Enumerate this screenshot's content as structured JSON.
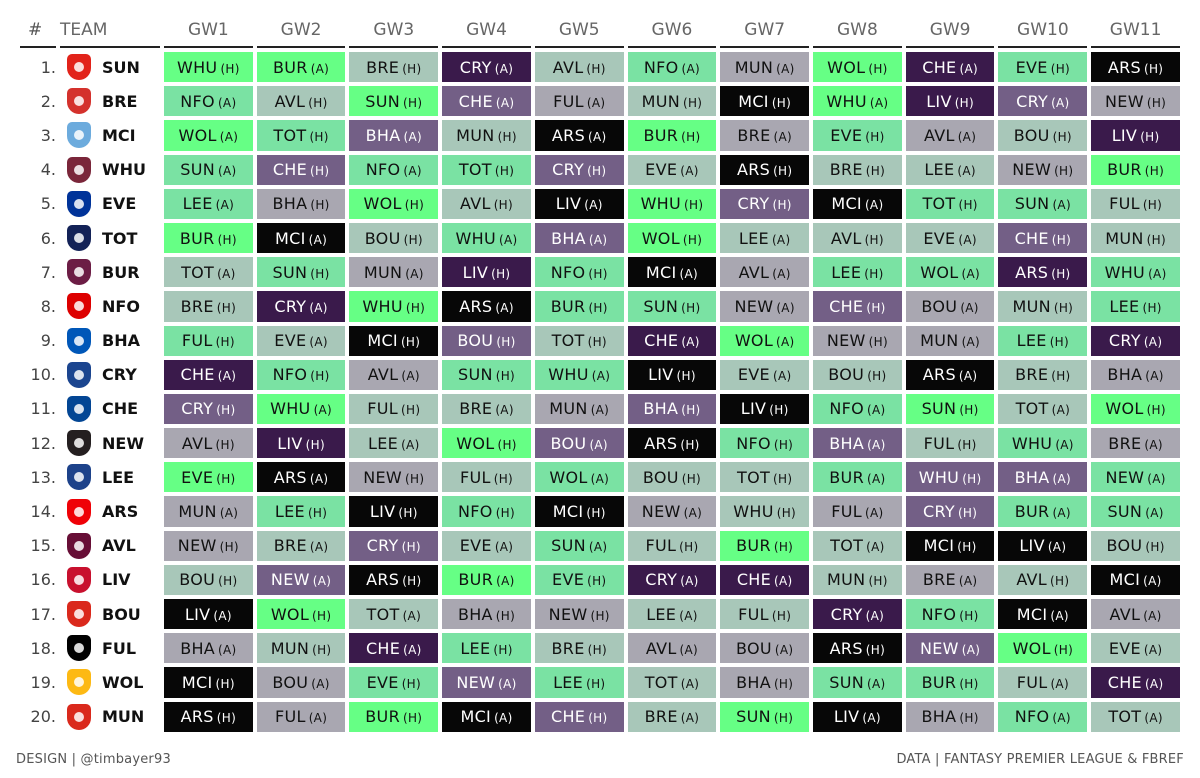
{
  "headers": {
    "num": "#",
    "team": "TEAM",
    "gameweeks": [
      "GW1",
      "GW2",
      "GW3",
      "GW4",
      "GW5",
      "GW6",
      "GW7",
      "GW8",
      "GW9",
      "GW10",
      "GW11"
    ]
  },
  "difficulty_colors": {
    "1": "#66ff85",
    "2": "#7ae2a3",
    "3": "#a8c7b9",
    "4": "#a9a7b1",
    "5": "#735f86",
    "6": "#3a1a4b",
    "7": "#070707"
  },
  "teams": [
    {
      "rank": "1.",
      "abbr": "SUN",
      "logo_color": "#e2231a",
      "logo_icon": "sunderland-crest-icon",
      "fixtures": [
        [
          "WHU",
          "(H)",
          1
        ],
        [
          "BUR",
          "(A)",
          1
        ],
        [
          "BRE",
          "(H)",
          3
        ],
        [
          "CRY",
          "(A)",
          6
        ],
        [
          "AVL",
          "(H)",
          3
        ],
        [
          "NFO",
          "(A)",
          2
        ],
        [
          "MUN",
          "(A)",
          4
        ],
        [
          "WOL",
          "(H)",
          1
        ],
        [
          "CHE",
          "(A)",
          6
        ],
        [
          "EVE",
          "(H)",
          2
        ],
        [
          "ARS",
          "(H)",
          7
        ]
      ]
    },
    {
      "rank": "2.",
      "abbr": "BRE",
      "logo_color": "#d4312c",
      "logo_icon": "brentford-crest-icon",
      "fixtures": [
        [
          "NFO",
          "(A)",
          2
        ],
        [
          "AVL",
          "(H)",
          3
        ],
        [
          "SUN",
          "(H)",
          1
        ],
        [
          "CHE",
          "(A)",
          5
        ],
        [
          "FUL",
          "(A)",
          4
        ],
        [
          "MUN",
          "(H)",
          3
        ],
        [
          "MCI",
          "(H)",
          7
        ],
        [
          "WHU",
          "(A)",
          1
        ],
        [
          "LIV",
          "(H)",
          6
        ],
        [
          "CRY",
          "(A)",
          5
        ],
        [
          "NEW",
          "(H)",
          4
        ]
      ]
    },
    {
      "rank": "3.",
      "abbr": "MCI",
      "logo_color": "#6cabdd",
      "logo_icon": "man-city-crest-icon",
      "fixtures": [
        [
          "WOL",
          "(A)",
          1
        ],
        [
          "TOT",
          "(H)",
          2
        ],
        [
          "BHA",
          "(A)",
          5
        ],
        [
          "MUN",
          "(H)",
          3
        ],
        [
          "ARS",
          "(A)",
          7
        ],
        [
          "BUR",
          "(H)",
          1
        ],
        [
          "BRE",
          "(A)",
          4
        ],
        [
          "EVE",
          "(H)",
          2
        ],
        [
          "AVL",
          "(A)",
          4
        ],
        [
          "BOU",
          "(H)",
          3
        ],
        [
          "LIV",
          "(H)",
          6
        ]
      ]
    },
    {
      "rank": "4.",
      "abbr": "WHU",
      "logo_color": "#7a263a",
      "logo_icon": "west-ham-crest-icon",
      "fixtures": [
        [
          "SUN",
          "(A)",
          2
        ],
        [
          "CHE",
          "(H)",
          5
        ],
        [
          "NFO",
          "(A)",
          2
        ],
        [
          "TOT",
          "(H)",
          2
        ],
        [
          "CRY",
          "(H)",
          5
        ],
        [
          "EVE",
          "(A)",
          3
        ],
        [
          "ARS",
          "(H)",
          7
        ],
        [
          "BRE",
          "(H)",
          3
        ],
        [
          "LEE",
          "(A)",
          3
        ],
        [
          "NEW",
          "(H)",
          4
        ],
        [
          "BUR",
          "(H)",
          1
        ]
      ]
    },
    {
      "rank": "5.",
      "abbr": "EVE",
      "logo_color": "#003399",
      "logo_icon": "everton-crest-icon",
      "fixtures": [
        [
          "LEE",
          "(A)",
          2
        ],
        [
          "BHA",
          "(H)",
          4
        ],
        [
          "WOL",
          "(H)",
          1
        ],
        [
          "AVL",
          "(H)",
          3
        ],
        [
          "LIV",
          "(A)",
          7
        ],
        [
          "WHU",
          "(H)",
          1
        ],
        [
          "CRY",
          "(H)",
          5
        ],
        [
          "MCI",
          "(A)",
          7
        ],
        [
          "TOT",
          "(H)",
          2
        ],
        [
          "SUN",
          "(A)",
          2
        ],
        [
          "FUL",
          "(H)",
          3
        ]
      ]
    },
    {
      "rank": "6.",
      "abbr": "TOT",
      "logo_color": "#132257",
      "logo_icon": "tottenham-crest-icon",
      "fixtures": [
        [
          "BUR",
          "(H)",
          1
        ],
        [
          "MCI",
          "(A)",
          7
        ],
        [
          "BOU",
          "(H)",
          3
        ],
        [
          "WHU",
          "(A)",
          2
        ],
        [
          "BHA",
          "(A)",
          5
        ],
        [
          "WOL",
          "(H)",
          1
        ],
        [
          "LEE",
          "(A)",
          3
        ],
        [
          "AVL",
          "(H)",
          3
        ],
        [
          "EVE",
          "(A)",
          3
        ],
        [
          "CHE",
          "(H)",
          5
        ],
        [
          "MUN",
          "(H)",
          3
        ]
      ]
    },
    {
      "rank": "7.",
      "abbr": "BUR",
      "logo_color": "#6c1d45",
      "logo_icon": "burnley-crest-icon",
      "fixtures": [
        [
          "TOT",
          "(A)",
          3
        ],
        [
          "SUN",
          "(H)",
          2
        ],
        [
          "MUN",
          "(A)",
          4
        ],
        [
          "LIV",
          "(H)",
          6
        ],
        [
          "NFO",
          "(H)",
          2
        ],
        [
          "MCI",
          "(A)",
          7
        ],
        [
          "AVL",
          "(A)",
          4
        ],
        [
          "LEE",
          "(H)",
          2
        ],
        [
          "WOL",
          "(A)",
          2
        ],
        [
          "ARS",
          "(H)",
          6
        ],
        [
          "WHU",
          "(A)",
          2
        ]
      ]
    },
    {
      "rank": "8.",
      "abbr": "NFO",
      "logo_color": "#dd0000",
      "logo_icon": "forest-crest-icon",
      "fixtures": [
        [
          "BRE",
          "(H)",
          3
        ],
        [
          "CRY",
          "(A)",
          6
        ],
        [
          "WHU",
          "(H)",
          1
        ],
        [
          "ARS",
          "(A)",
          7
        ],
        [
          "BUR",
          "(H)",
          2
        ],
        [
          "SUN",
          "(H)",
          2
        ],
        [
          "NEW",
          "(A)",
          4
        ],
        [
          "CHE",
          "(H)",
          5
        ],
        [
          "BOU",
          "(A)",
          4
        ],
        [
          "MUN",
          "(H)",
          3
        ],
        [
          "LEE",
          "(H)",
          2
        ]
      ]
    },
    {
      "rank": "9.",
      "abbr": "BHA",
      "logo_color": "#0057b8",
      "logo_icon": "brighton-crest-icon",
      "fixtures": [
        [
          "FUL",
          "(H)",
          2
        ],
        [
          "EVE",
          "(A)",
          3
        ],
        [
          "MCI",
          "(H)",
          7
        ],
        [
          "BOU",
          "(H)",
          5
        ],
        [
          "TOT",
          "(H)",
          3
        ],
        [
          "CHE",
          "(A)",
          6
        ],
        [
          "WOL",
          "(A)",
          1
        ],
        [
          "NEW",
          "(H)",
          4
        ],
        [
          "MUN",
          "(A)",
          4
        ],
        [
          "LEE",
          "(H)",
          2
        ],
        [
          "CRY",
          "(A)",
          6
        ]
      ]
    },
    {
      "rank": "10.",
      "abbr": "CRY",
      "logo_color": "#1b458f",
      "logo_icon": "palace-crest-icon",
      "fixtures": [
        [
          "CHE",
          "(A)",
          6
        ],
        [
          "NFO",
          "(H)",
          2
        ],
        [
          "AVL",
          "(A)",
          4
        ],
        [
          "SUN",
          "(H)",
          2
        ],
        [
          "WHU",
          "(A)",
          2
        ],
        [
          "LIV",
          "(H)",
          7
        ],
        [
          "EVE",
          "(A)",
          3
        ],
        [
          "BOU",
          "(H)",
          3
        ],
        [
          "ARS",
          "(A)",
          7
        ],
        [
          "BRE",
          "(H)",
          3
        ],
        [
          "BHA",
          "(A)",
          4
        ]
      ]
    },
    {
      "rank": "11.",
      "abbr": "CHE",
      "logo_color": "#034694",
      "logo_icon": "chelsea-crest-icon",
      "fixtures": [
        [
          "CRY",
          "(H)",
          5
        ],
        [
          "WHU",
          "(A)",
          1
        ],
        [
          "FUL",
          "(H)",
          3
        ],
        [
          "BRE",
          "(A)",
          3
        ],
        [
          "MUN",
          "(A)",
          4
        ],
        [
          "BHA",
          "(H)",
          5
        ],
        [
          "LIV",
          "(H)",
          7
        ],
        [
          "NFO",
          "(A)",
          2
        ],
        [
          "SUN",
          "(H)",
          1
        ],
        [
          "TOT",
          "(A)",
          3
        ],
        [
          "WOL",
          "(H)",
          1
        ]
      ]
    },
    {
      "rank": "12.",
      "abbr": "NEW",
      "logo_color": "#241f20",
      "logo_icon": "newcastle-crest-icon",
      "fixtures": [
        [
          "AVL",
          "(H)",
          4
        ],
        [
          "LIV",
          "(H)",
          6
        ],
        [
          "LEE",
          "(A)",
          3
        ],
        [
          "WOL",
          "(H)",
          1
        ],
        [
          "BOU",
          "(A)",
          5
        ],
        [
          "ARS",
          "(H)",
          7
        ],
        [
          "NFO",
          "(H)",
          2
        ],
        [
          "BHA",
          "(A)",
          5
        ],
        [
          "FUL",
          "(H)",
          3
        ],
        [
          "WHU",
          "(A)",
          2
        ],
        [
          "BRE",
          "(A)",
          4
        ]
      ]
    },
    {
      "rank": "13.",
      "abbr": "LEE",
      "logo_color": "#1d428a",
      "logo_icon": "leeds-crest-icon",
      "fixtures": [
        [
          "EVE",
          "(H)",
          1
        ],
        [
          "ARS",
          "(A)",
          7
        ],
        [
          "NEW",
          "(H)",
          4
        ],
        [
          "FUL",
          "(H)",
          3
        ],
        [
          "WOL",
          "(A)",
          2
        ],
        [
          "BOU",
          "(H)",
          3
        ],
        [
          "TOT",
          "(H)",
          3
        ],
        [
          "BUR",
          "(A)",
          2
        ],
        [
          "WHU",
          "(H)",
          5
        ],
        [
          "BHA",
          "(A)",
          5
        ],
        [
          "NEW",
          "(A)",
          2
        ]
      ]
    },
    {
      "rank": "14.",
      "abbr": "ARS",
      "logo_color": "#ef0107",
      "logo_icon": "arsenal-crest-icon",
      "fixtures": [
        [
          "MUN",
          "(A)",
          4
        ],
        [
          "LEE",
          "(H)",
          2
        ],
        [
          "LIV",
          "(H)",
          7
        ],
        [
          "NFO",
          "(H)",
          2
        ],
        [
          "MCI",
          "(H)",
          7
        ],
        [
          "NEW",
          "(A)",
          4
        ],
        [
          "WHU",
          "(H)",
          3
        ],
        [
          "FUL",
          "(A)",
          4
        ],
        [
          "CRY",
          "(H)",
          5
        ],
        [
          "BUR",
          "(A)",
          2
        ],
        [
          "SUN",
          "(A)",
          2
        ]
      ]
    },
    {
      "rank": "15.",
      "abbr": "AVL",
      "logo_color": "#670e36",
      "logo_icon": "villa-crest-icon",
      "fixtures": [
        [
          "NEW",
          "(H)",
          4
        ],
        [
          "BRE",
          "(A)",
          3
        ],
        [
          "CRY",
          "(H)",
          5
        ],
        [
          "EVE",
          "(A)",
          3
        ],
        [
          "SUN",
          "(A)",
          2
        ],
        [
          "FUL",
          "(H)",
          3
        ],
        [
          "BUR",
          "(H)",
          1
        ],
        [
          "TOT",
          "(A)",
          3
        ],
        [
          "MCI",
          "(H)",
          7
        ],
        [
          "LIV",
          "(A)",
          7
        ],
        [
          "BOU",
          "(H)",
          3
        ]
      ]
    },
    {
      "rank": "16.",
      "abbr": "LIV",
      "logo_color": "#c8102e",
      "logo_icon": "liverpool-crest-icon",
      "fixtures": [
        [
          "BOU",
          "(H)",
          3
        ],
        [
          "NEW",
          "(A)",
          5
        ],
        [
          "ARS",
          "(H)",
          7
        ],
        [
          "BUR",
          "(A)",
          1
        ],
        [
          "EVE",
          "(H)",
          2
        ],
        [
          "CRY",
          "(A)",
          6
        ],
        [
          "CHE",
          "(A)",
          6
        ],
        [
          "MUN",
          "(H)",
          3
        ],
        [
          "BRE",
          "(A)",
          4
        ],
        [
          "AVL",
          "(H)",
          3
        ],
        [
          "MCI",
          "(A)",
          7
        ]
      ]
    },
    {
      "rank": "17.",
      "abbr": "BOU",
      "logo_color": "#da291c",
      "logo_icon": "bournemouth-crest-icon",
      "fixtures": [
        [
          "LIV",
          "(A)",
          7
        ],
        [
          "WOL",
          "(H)",
          1
        ],
        [
          "TOT",
          "(A)",
          3
        ],
        [
          "BHA",
          "(H)",
          4
        ],
        [
          "NEW",
          "(H)",
          4
        ],
        [
          "LEE",
          "(A)",
          3
        ],
        [
          "FUL",
          "(H)",
          3
        ],
        [
          "CRY",
          "(A)",
          6
        ],
        [
          "NFO",
          "(H)",
          2
        ],
        [
          "MCI",
          "(A)",
          7
        ],
        [
          "AVL",
          "(A)",
          4
        ]
      ]
    },
    {
      "rank": "18.",
      "abbr": "FUL",
      "logo_color": "#000000",
      "logo_icon": "fulham-crest-icon",
      "fixtures": [
        [
          "BHA",
          "(A)",
          4
        ],
        [
          "MUN",
          "(H)",
          3
        ],
        [
          "CHE",
          "(A)",
          6
        ],
        [
          "LEE",
          "(H)",
          2
        ],
        [
          "BRE",
          "(H)",
          3
        ],
        [
          "AVL",
          "(A)",
          4
        ],
        [
          "BOU",
          "(A)",
          4
        ],
        [
          "ARS",
          "(H)",
          7
        ],
        [
          "NEW",
          "(A)",
          5
        ],
        [
          "WOL",
          "(H)",
          1
        ],
        [
          "EVE",
          "(A)",
          3
        ]
      ]
    },
    {
      "rank": "19.",
      "abbr": "WOL",
      "logo_color": "#fdb913",
      "logo_icon": "wolves-crest-icon",
      "fixtures": [
        [
          "MCI",
          "(H)",
          7
        ],
        [
          "BOU",
          "(A)",
          4
        ],
        [
          "EVE",
          "(H)",
          2
        ],
        [
          "NEW",
          "(A)",
          5
        ],
        [
          "LEE",
          "(H)",
          2
        ],
        [
          "TOT",
          "(A)",
          3
        ],
        [
          "BHA",
          "(H)",
          4
        ],
        [
          "SUN",
          "(A)",
          2
        ],
        [
          "BUR",
          "(H)",
          2
        ],
        [
          "FUL",
          "(A)",
          3
        ],
        [
          "CHE",
          "(A)",
          6
        ]
      ]
    },
    {
      "rank": "20.",
      "abbr": "MUN",
      "logo_color": "#da291c",
      "logo_icon": "man-utd-crest-icon",
      "fixtures": [
        [
          "ARS",
          "(H)",
          7
        ],
        [
          "FUL",
          "(A)",
          4
        ],
        [
          "BUR",
          "(H)",
          1
        ],
        [
          "MCI",
          "(A)",
          7
        ],
        [
          "CHE",
          "(H)",
          5
        ],
        [
          "BRE",
          "(A)",
          3
        ],
        [
          "SUN",
          "(H)",
          1
        ],
        [
          "LIV",
          "(A)",
          7
        ],
        [
          "BHA",
          "(H)",
          4
        ],
        [
          "NFO",
          "(A)",
          2
        ],
        [
          "TOT",
          "(A)",
          3
        ]
      ]
    }
  ],
  "footer": {
    "left": "DESIGN | @timbayer93",
    "right": "DATA | FANTASY PREMIER LEAGUE & FBREF"
  }
}
